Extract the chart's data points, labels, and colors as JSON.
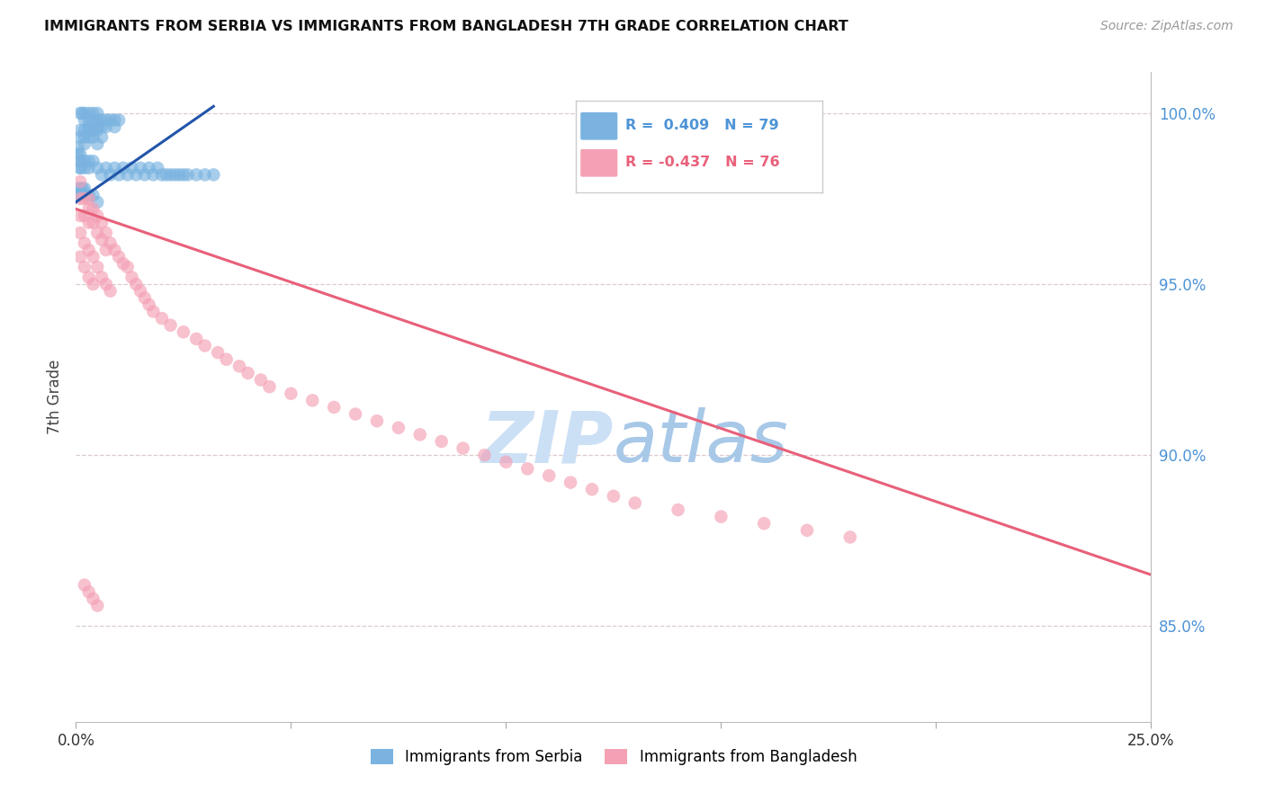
{
  "title": "IMMIGRANTS FROM SERBIA VS IMMIGRANTS FROM BANGLADESH 7TH GRADE CORRELATION CHART",
  "source": "Source: ZipAtlas.com",
  "ylabel": "7th Grade",
  "legend_serbia": "Immigrants from Serbia",
  "legend_bangladesh": "Immigrants from Bangladesh",
  "R_serbia": 0.409,
  "N_serbia": 79,
  "R_bangladesh": -0.437,
  "N_bangladesh": 76,
  "serbia_color": "#7ab3e0",
  "bangladesh_color": "#f4a0b5",
  "serbia_line_color": "#2255aa",
  "bangladesh_line_color": "#e8607a",
  "right_axis_color": "#4d94d6",
  "ylabel_right_vals": [
    0.85,
    0.9,
    0.95,
    1.0
  ],
  "ylabel_right_labels": [
    "85.0%",
    "90.0%",
    "95.0%",
    "100.0%"
  ],
  "watermark_color": "#cce0f5",
  "xmin": 0.0,
  "xmax": 0.25,
  "ymin": 0.822,
  "ymax": 1.012,
  "serbia_x": [
    0.001,
    0.0015,
    0.002,
    0.002,
    0.003,
    0.003,
    0.003,
    0.004,
    0.004,
    0.005,
    0.005,
    0.005,
    0.006,
    0.006,
    0.007,
    0.007,
    0.008,
    0.009,
    0.009,
    0.01,
    0.001,
    0.001,
    0.002,
    0.002,
    0.002,
    0.003,
    0.003,
    0.004,
    0.004,
    0.005,
    0.005,
    0.006,
    0.001,
    0.001,
    0.001,
    0.0005,
    0.0005,
    0.001,
    0.001,
    0.002,
    0.002,
    0.003,
    0.003,
    0.004,
    0.005,
    0.006,
    0.007,
    0.008,
    0.009,
    0.01,
    0.011,
    0.012,
    0.013,
    0.014,
    0.015,
    0.016,
    0.017,
    0.018,
    0.019,
    0.02,
    0.021,
    0.022,
    0.023,
    0.024,
    0.025,
    0.026,
    0.028,
    0.03,
    0.032,
    0.0005,
    0.0005,
    0.001,
    0.001,
    0.0015,
    0.002,
    0.0025,
    0.003,
    0.004,
    0.005
  ],
  "serbia_y": [
    1.0,
    1.0,
    1.0,
    0.998,
    1.0,
    0.998,
    0.996,
    1.0,
    0.998,
    1.0,
    0.998,
    0.996,
    0.998,
    0.996,
    0.998,
    0.996,
    0.998,
    0.998,
    0.996,
    0.998,
    0.995,
    0.993,
    0.995,
    0.993,
    0.991,
    0.995,
    0.993,
    0.995,
    0.993,
    0.995,
    0.991,
    0.993,
    0.988,
    0.986,
    0.984,
    0.99,
    0.988,
    0.986,
    0.984,
    0.986,
    0.984,
    0.986,
    0.984,
    0.986,
    0.984,
    0.982,
    0.984,
    0.982,
    0.984,
    0.982,
    0.984,
    0.982,
    0.984,
    0.982,
    0.984,
    0.982,
    0.984,
    0.982,
    0.984,
    0.982,
    0.982,
    0.982,
    0.982,
    0.982,
    0.982,
    0.982,
    0.982,
    0.982,
    0.982,
    0.978,
    0.976,
    0.978,
    0.976,
    0.978,
    0.978,
    0.976,
    0.976,
    0.976,
    0.974
  ],
  "bangladesh_x": [
    0.001,
    0.001,
    0.001,
    0.002,
    0.002,
    0.003,
    0.003,
    0.003,
    0.004,
    0.004,
    0.005,
    0.005,
    0.006,
    0.006,
    0.007,
    0.007,
    0.008,
    0.009,
    0.01,
    0.011,
    0.012,
    0.013,
    0.014,
    0.015,
    0.016,
    0.017,
    0.018,
    0.02,
    0.022,
    0.025,
    0.028,
    0.03,
    0.033,
    0.035,
    0.038,
    0.04,
    0.043,
    0.045,
    0.05,
    0.055,
    0.06,
    0.065,
    0.07,
    0.075,
    0.08,
    0.085,
    0.09,
    0.095,
    0.1,
    0.105,
    0.11,
    0.115,
    0.12,
    0.125,
    0.13,
    0.14,
    0.15,
    0.16,
    0.17,
    0.18,
    0.001,
    0.002,
    0.003,
    0.004,
    0.005,
    0.006,
    0.007,
    0.008,
    0.001,
    0.002,
    0.003,
    0.004,
    0.002,
    0.003,
    0.004,
    0.005
  ],
  "bangladesh_y": [
    0.98,
    0.975,
    0.97,
    0.975,
    0.97,
    0.975,
    0.972,
    0.968,
    0.972,
    0.968,
    0.97,
    0.965,
    0.968,
    0.963,
    0.965,
    0.96,
    0.962,
    0.96,
    0.958,
    0.956,
    0.955,
    0.952,
    0.95,
    0.948,
    0.946,
    0.944,
    0.942,
    0.94,
    0.938,
    0.936,
    0.934,
    0.932,
    0.93,
    0.928,
    0.926,
    0.924,
    0.922,
    0.92,
    0.918,
    0.916,
    0.914,
    0.912,
    0.91,
    0.908,
    0.906,
    0.904,
    0.902,
    0.9,
    0.898,
    0.896,
    0.894,
    0.892,
    0.89,
    0.888,
    0.886,
    0.884,
    0.882,
    0.88,
    0.878,
    0.876,
    0.965,
    0.962,
    0.96,
    0.958,
    0.955,
    0.952,
    0.95,
    0.948,
    0.958,
    0.955,
    0.952,
    0.95,
    0.862,
    0.86,
    0.858,
    0.856
  ],
  "serbia_line_x": [
    0.0,
    0.032
  ],
  "serbia_line_y": [
    0.974,
    1.002
  ],
  "bangladesh_line_x": [
    0.0,
    0.25
  ],
  "bangladesh_line_y": [
    0.972,
    0.865
  ]
}
